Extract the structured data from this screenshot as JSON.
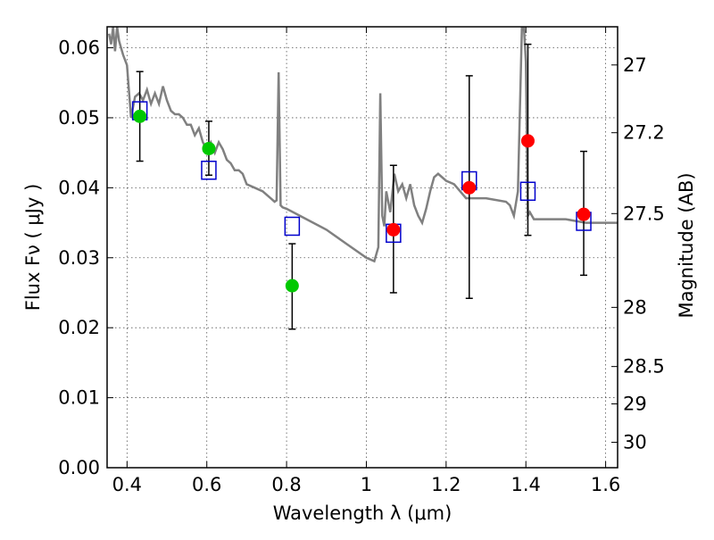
{
  "chart_data": {
    "type": "scatter",
    "xlabel": "Wavelength  λ (μm)",
    "ylabel": "Flux  Fν  ( μJy )",
    "y2label": "Magnitude (AB)",
    "xlim": [
      0.35,
      1.63
    ],
    "ylim": [
      0.0,
      0.063
    ],
    "grid": true,
    "x_ticks": [
      0.4,
      0.6,
      0.8,
      1.0,
      1.2,
      1.4,
      1.6
    ],
    "x_tick_labels": [
      "0.4",
      "0.6",
      "0.8",
      "1",
      "1.2",
      "1.4",
      "1.6"
    ],
    "y_ticks": [
      0.0,
      0.01,
      0.02,
      0.03,
      0.04,
      0.05,
      0.06
    ],
    "y_tick_labels": [
      "0.00",
      "0.01",
      "0.02",
      "0.03",
      "0.04",
      "0.05",
      "0.06"
    ],
    "y2_ticks": [
      27,
      27.2,
      27.5,
      28,
      28.5,
      29,
      30
    ],
    "y2_tick_labels": [
      "27",
      "27.2",
      "27.5",
      "28",
      "28.5",
      "29",
      "30"
    ],
    "model_spectrum": {
      "color": "#808080",
      "x": [
        0.355,
        0.36,
        0.365,
        0.37,
        0.375,
        0.38,
        0.385,
        0.39,
        0.4,
        0.41,
        0.42,
        0.43,
        0.44,
        0.45,
        0.46,
        0.47,
        0.48,
        0.49,
        0.5,
        0.51,
        0.52,
        0.53,
        0.54,
        0.55,
        0.56,
        0.57,
        0.58,
        0.59,
        0.6,
        0.61,
        0.62,
        0.63,
        0.64,
        0.65,
        0.66,
        0.67,
        0.68,
        0.69,
        0.7,
        0.72,
        0.74,
        0.76,
        0.77,
        0.775,
        0.78,
        0.785,
        0.79,
        0.8,
        0.85,
        0.9,
        0.95,
        1.0,
        1.02,
        1.03,
        1.035,
        1.04,
        1.045,
        1.05,
        1.06,
        1.07,
        1.08,
        1.09,
        1.1,
        1.11,
        1.12,
        1.13,
        1.14,
        1.15,
        1.16,
        1.17,
        1.18,
        1.2,
        1.22,
        1.25,
        1.3,
        1.35,
        1.36,
        1.37,
        1.38,
        1.39,
        1.395,
        1.4,
        1.405,
        1.41,
        1.42,
        1.45,
        1.5,
        1.55,
        1.6,
        1.63
      ],
      "y": [
        0.062,
        0.0605,
        0.063,
        0.0595,
        0.063,
        0.061,
        0.06,
        0.059,
        0.0575,
        0.05,
        0.053,
        0.0535,
        0.0525,
        0.054,
        0.052,
        0.0535,
        0.052,
        0.0545,
        0.0525,
        0.051,
        0.0505,
        0.0505,
        0.05,
        0.049,
        0.049,
        0.0475,
        0.0485,
        0.0465,
        0.0455,
        0.0465,
        0.045,
        0.0465,
        0.0455,
        0.044,
        0.0435,
        0.0425,
        0.0425,
        0.042,
        0.0405,
        0.04,
        0.0395,
        0.0385,
        0.038,
        0.0382,
        0.0565,
        0.0375,
        0.0372,
        0.037,
        0.0355,
        0.034,
        0.032,
        0.03,
        0.0295,
        0.0315,
        0.0535,
        0.036,
        0.0345,
        0.0395,
        0.0365,
        0.042,
        0.0395,
        0.0405,
        0.0385,
        0.0405,
        0.0375,
        0.036,
        0.035,
        0.037,
        0.0395,
        0.0415,
        0.042,
        0.041,
        0.0405,
        0.0385,
        0.0385,
        0.038,
        0.0375,
        0.036,
        0.0395,
        0.063,
        0.063,
        0.058,
        0.036,
        0.0365,
        0.0355,
        0.0355,
        0.0355,
        0.035,
        0.035,
        0.035
      ]
    },
    "model_photometry": {
      "marker": "open-square",
      "color": "#0000cc",
      "x": [
        0.432,
        0.605,
        0.814,
        1.068,
        1.258,
        1.405,
        1.545
      ],
      "y": [
        0.051,
        0.0425,
        0.0345,
        0.0335,
        0.041,
        0.0395,
        0.0352
      ]
    },
    "series": [
      {
        "marker": "filled-circle",
        "color": "#00c800",
        "x": [
          0.432,
          0.605,
          0.814
        ],
        "y": [
          0.0502,
          0.0456,
          0.026
        ],
        "yerr_low": [
          0.0438,
          0.0418,
          0.0198
        ],
        "yerr_high": [
          0.0566,
          0.0495,
          0.032
        ]
      },
      {
        "marker": "filled-circle",
        "color": "#ff0000",
        "x": [
          1.068,
          1.258,
          1.405,
          1.545
        ],
        "y": [
          0.034,
          0.04,
          0.0467,
          0.0362
        ],
        "yerr_low": [
          0.025,
          0.0242,
          0.0332,
          0.0275
        ],
        "yerr_high": [
          0.0432,
          0.056,
          0.0605,
          0.0452
        ]
      }
    ]
  }
}
